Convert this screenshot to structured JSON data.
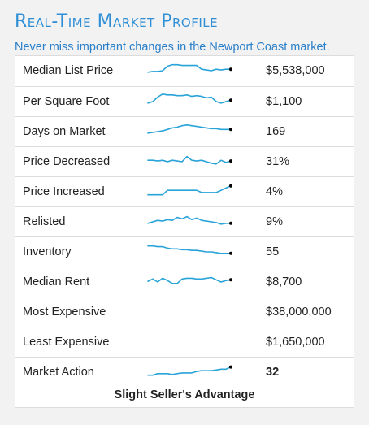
{
  "header": {
    "title": "Real-Time Market Profile",
    "subtitle": "Never miss important changes in the Newport Coast market."
  },
  "colors": {
    "title": "#2f8fd6",
    "subtitle": "#2a7fc9",
    "sparkline": "#29a3d8",
    "background": "#f2f2f2"
  },
  "rows": [
    {
      "label": "Median List Price",
      "value": "$5,538,000",
      "trend": [
        10,
        11,
        11,
        12,
        18,
        20,
        20,
        19,
        19,
        19,
        19,
        14,
        13,
        12,
        14,
        13,
        14,
        14
      ]
    },
    {
      "label": "Per Square Foot",
      "value": "$1,100",
      "trend": [
        10,
        12,
        18,
        22,
        21,
        21,
        20,
        20,
        21,
        19,
        20,
        19,
        17,
        18,
        12,
        10,
        12,
        14
      ]
    },
    {
      "label": "Days on Market",
      "value": "169",
      "trend": [
        10,
        11,
        12,
        13,
        15,
        17,
        18,
        20,
        21,
        20,
        19,
        18,
        17,
        16,
        16,
        15,
        15,
        15
      ]
    },
    {
      "label": "Price Decreased",
      "value": "31%",
      "trend": [
        14,
        14,
        13,
        14,
        12,
        14,
        13,
        12,
        19,
        14,
        13,
        14,
        12,
        10,
        9,
        14,
        11,
        13
      ]
    },
    {
      "label": "Price Increased",
      "value": "4%",
      "trend": [
        8,
        8,
        8,
        8,
        14,
        14,
        14,
        14,
        14,
        14,
        14,
        11,
        11,
        11,
        11,
        14,
        17,
        20
      ]
    },
    {
      "label": "Relisted",
      "value": "9%",
      "trend": [
        10,
        12,
        14,
        13,
        15,
        14,
        18,
        16,
        19,
        15,
        17,
        14,
        13,
        12,
        11,
        9,
        10,
        10
      ]
    },
    {
      "label": "Inventory",
      "value": "55",
      "trend": [
        20,
        20,
        19,
        19,
        17,
        16,
        16,
        15,
        15,
        14,
        14,
        13,
        12,
        12,
        11,
        10,
        10,
        10
      ]
    },
    {
      "label": "Median Rent",
      "value": "$8,700",
      "trend": [
        13,
        16,
        12,
        17,
        14,
        10,
        10,
        16,
        17,
        17,
        16,
        16,
        17,
        18,
        15,
        12,
        14,
        15
      ]
    },
    {
      "label": "Most Expensive",
      "value": "$38,000,000"
    },
    {
      "label": "Least Expensive",
      "value": "$1,650,000"
    },
    {
      "label": "Market Action",
      "value": "32",
      "trend": [
        8,
        8,
        10,
        10,
        10,
        9,
        10,
        11,
        11,
        11,
        13,
        14,
        14,
        14,
        15,
        16,
        16,
        19
      ],
      "verdict": "Slight Seller's Advantage"
    }
  ]
}
